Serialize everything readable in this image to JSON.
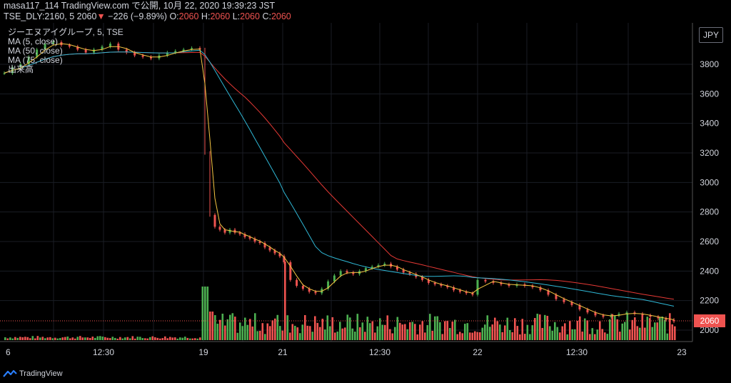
{
  "header": {
    "line1": "masa117_114 TradingView.com で公開, 10月 22, 2020 19:39:23 JST",
    "line2_prefix": "TSE_DLY:2160, 5 2060",
    "line2_arrow": "▼",
    "line2_change": " −226 (−9.89%) O:",
    "o": "2060",
    "h_label": " H:",
    "h": "2060",
    "l_label": " L:",
    "l": "2060",
    "c_label": " C:",
    "c": "2060"
  },
  "legend": {
    "symbol": "ジーエヌアイグループ, 5, TSE",
    "ma5": "MA (5, close)",
    "ma50": "MA (50, close)",
    "ma75": "MA (75, close)",
    "volume": "出来高"
  },
  "currency_button": "JPY",
  "last_price_label": "2060",
  "footer": {
    "brand": "TradingView",
    "logo_icon": "tradingview-logo-icon"
  },
  "colors": {
    "up": "#4caf50",
    "down": "#ef5350",
    "ma5": "#f5c542",
    "ma50": "#2fb8d6",
    "ma75": "#e53935"
  },
  "chart_data": {
    "type": "candlestick",
    "y_ticks": [
      "3800",
      "3600",
      "3400",
      "3200",
      "3000",
      "2800",
      "2600",
      "2400",
      "2200",
      "2000"
    ],
    "ylim": [
      1960,
      4000
    ],
    "x_tick_labels": [
      "6",
      "12:30",
      "19",
      "21",
      "12:30",
      "22",
      "12:30",
      "23"
    ],
    "grid": true,
    "close_series": [
      {
        "segment": "day1",
        "points": [
          3740,
          3780,
          3800,
          3850,
          3900,
          3940,
          3950,
          3930,
          3920,
          3900,
          3880,
          3900,
          3920,
          3940,
          3900,
          3880,
          3860,
          3850,
          3840,
          3860,
          3880,
          3890,
          3900,
          3910,
          3900
        ]
      },
      {
        "segment": "day2",
        "points": [
          3200,
          2780,
          2700,
          2680,
          2660,
          2680,
          2660,
          2650,
          2630,
          2620,
          2600,
          2590,
          2560,
          2540,
          2520,
          2500
        ]
      },
      {
        "segment": "day3",
        "points": [
          2460,
          2340,
          2300,
          2280,
          2260,
          2250,
          2280,
          2330,
          2370,
          2400,
          2390,
          2380,
          2400,
          2420,
          2430,
          2440,
          2450,
          2430,
          2410,
          2390,
          2380,
          2360,
          2340,
          2320,
          2310,
          2300,
          2290,
          2270,
          2260,
          2250,
          2240
        ]
      },
      {
        "segment": "day4",
        "points": [
          2340,
          2330,
          2320,
          2310,
          2300,
          2310,
          2300,
          2290,
          2270,
          2240,
          2210,
          2190,
          2170,
          2140,
          2120,
          2100,
          2090,
          2100,
          2110,
          2120,
          2110,
          2100,
          2090,
          2080,
          2070,
          2060
        ]
      }
    ],
    "volume_scale": "relative"
  }
}
